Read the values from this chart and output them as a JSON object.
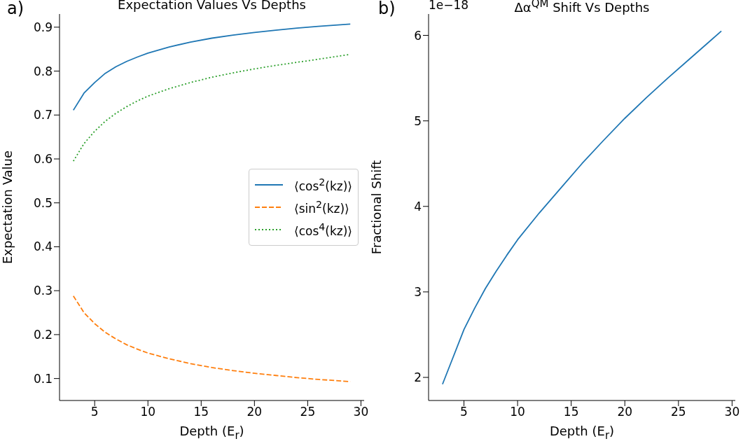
{
  "chart_data": [
    {
      "type": "line",
      "title": "Expectation Values Vs Depths",
      "xlabel": "Depth (E$_{r}$)",
      "ylabel": "Expectation Value",
      "annotations": [
        "a)"
      ],
      "x": [
        3,
        4,
        5,
        6,
        7,
        8,
        9,
        10,
        12,
        14,
        16,
        18,
        20,
        22,
        24,
        26,
        29
      ],
      "series": [
        {
          "name": "⟨cos$^{2}$(kz)⟩",
          "color": "#1f77b4",
          "line_style": "solid",
          "values": [
            0.711,
            0.75,
            0.774,
            0.795,
            0.81,
            0.822,
            0.832,
            0.841,
            0.855,
            0.866,
            0.875,
            0.882,
            0.888,
            0.893,
            0.898,
            0.902,
            0.907
          ]
        },
        {
          "name": "⟨sin$^{2}$(kz)⟩",
          "color": "#ff7f0e",
          "line_style": "dashed",
          "values": [
            0.288,
            0.25,
            0.225,
            0.205,
            0.19,
            0.177,
            0.167,
            0.158,
            0.145,
            0.134,
            0.125,
            0.118,
            0.112,
            0.107,
            0.102,
            0.098,
            0.093
          ]
        },
        {
          "name": "⟨cos$^{4}$(kz)⟩",
          "color": "#2ca02c",
          "line_style": "dotted",
          "values": [
            0.595,
            0.635,
            0.663,
            0.686,
            0.704,
            0.719,
            0.732,
            0.743,
            0.76,
            0.774,
            0.786,
            0.796,
            0.805,
            0.813,
            0.82,
            0.827,
            0.838
          ]
        }
      ],
      "xlim": [
        1.7,
        30.3
      ],
      "xticks": [
        5,
        10,
        15,
        20,
        25,
        30
      ],
      "ylim": [
        0.05,
        0.93
      ],
      "yticks": [
        0.1,
        0.2,
        0.3,
        0.4,
        0.5,
        0.6,
        0.7,
        0.8,
        0.9
      ],
      "grid": false,
      "legend": "right"
    },
    {
      "type": "line",
      "title": "Δα$^{QM}$ Shift Vs Depths",
      "xlabel": "Depth (E$_{r}$)",
      "ylabel": "Fractional Shift",
      "annotations": [
        "b)",
        "1e−18"
      ],
      "x": [
        3,
        4,
        5,
        6,
        7,
        8,
        9,
        10,
        12,
        14,
        16,
        18,
        20,
        22,
        24,
        26,
        29
      ],
      "series": [
        {
          "color": "#1f77b4",
          "line_style": "solid",
          "values": [
            1.92,
            2.24,
            2.56,
            2.81,
            3.04,
            3.24,
            3.43,
            3.61,
            3.92,
            4.21,
            4.5,
            4.77,
            5.03,
            5.27,
            5.5,
            5.72,
            6.05
          ]
        }
      ],
      "xlim": [
        1.7,
        30.3
      ],
      "xticks": [
        5,
        10,
        15,
        20,
        25,
        30
      ],
      "ylim": [
        1.73,
        6.25
      ],
      "yticks": [
        2,
        3,
        4,
        5,
        6
      ],
      "grid": false,
      "legend": false
    }
  ]
}
